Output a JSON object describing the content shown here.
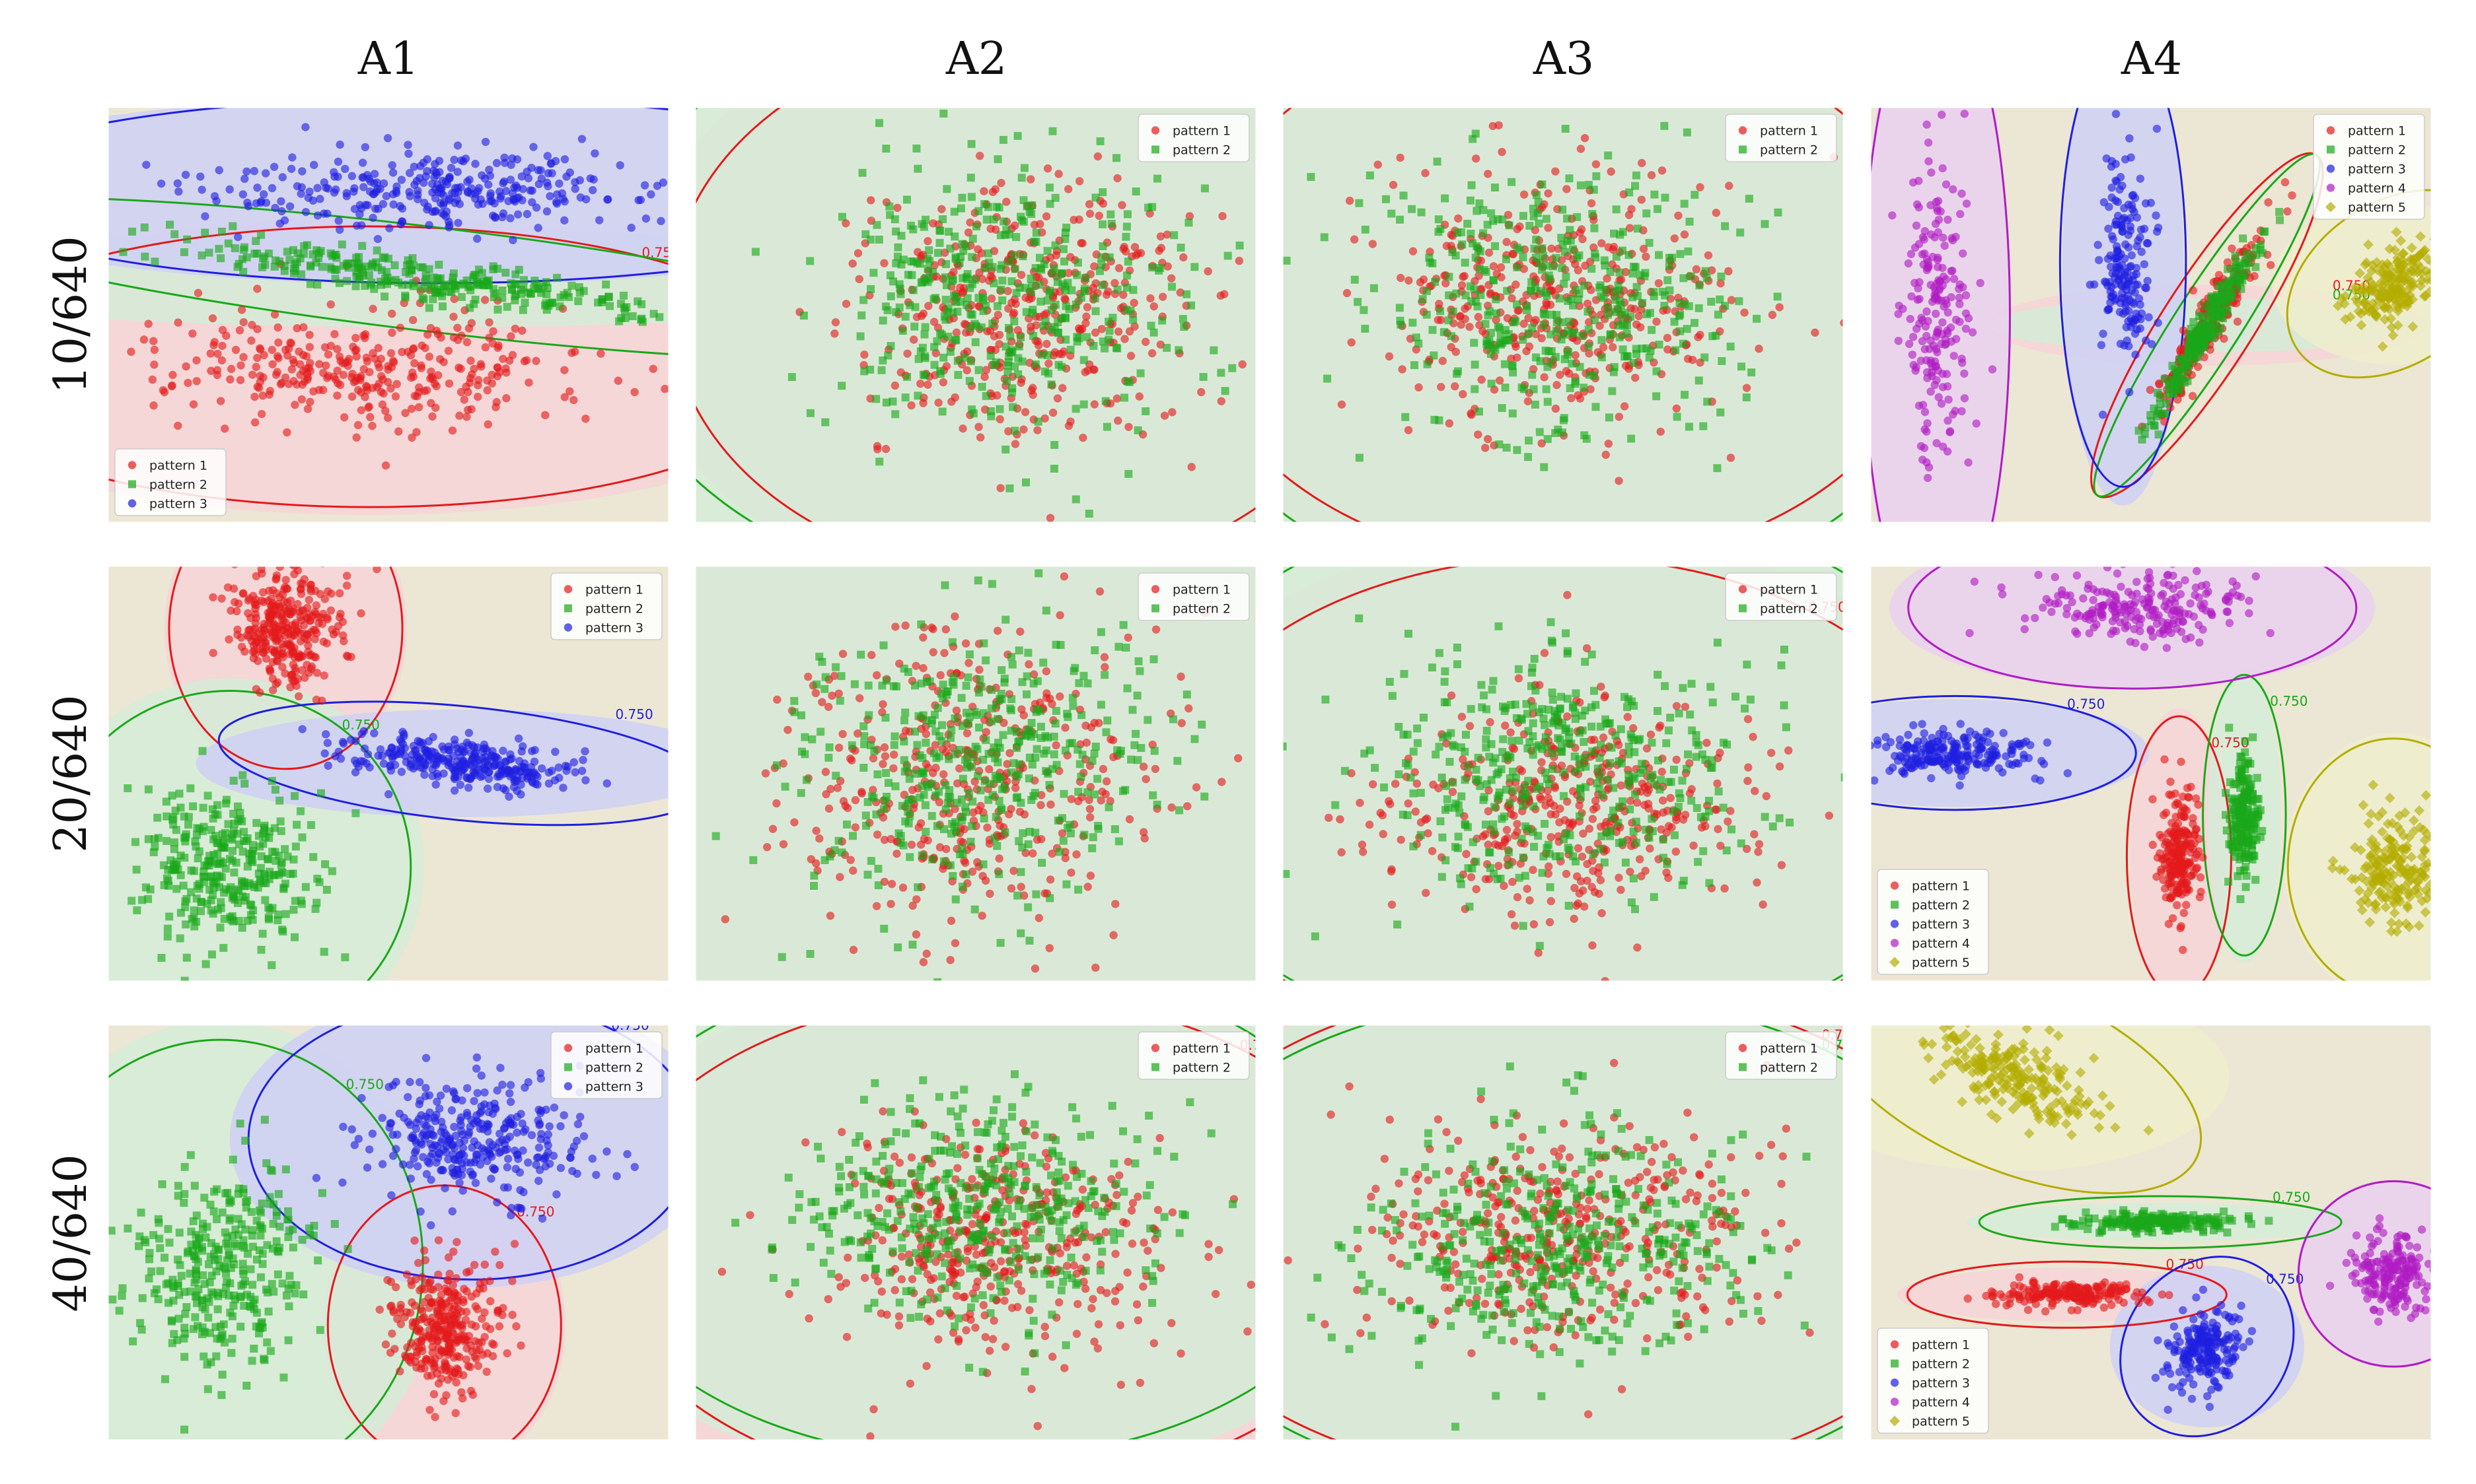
{
  "figure": {
    "column_titles": [
      "A1",
      "A2",
      "A3",
      "A4"
    ],
    "row_titles": [
      "10/640",
      "20/640",
      "40/640"
    ]
  },
  "colors": {
    "pattern 1": "#e41a1c",
    "pattern 2": "#1aa81a",
    "pattern 3": "#1f1fe0",
    "pattern 4": "#b01cc4",
    "pattern 5": "#b3ad00"
  },
  "chart_data": [
    {
      "type": "scatter",
      "panel": "A1 10/640",
      "series": [
        {
          "name": "pattern 1",
          "marker": "circle",
          "n": 340,
          "center": [
            -0.2,
            -0.5
          ],
          "spread": [
            2.0,
            0.55
          ]
        },
        {
          "name": "pattern 2",
          "marker": "square",
          "n": 300,
          "center": [
            0.4,
            0.35
          ],
          "spread": [
            2.4,
            0.18
          ],
          "tilt": -0.12
        },
        {
          "name": "pattern 3",
          "marker": "circle",
          "n": 320,
          "center": [
            0.5,
            1.2
          ],
          "spread": [
            2.2,
            0.35
          ]
        }
      ],
      "contour_level": "0.750",
      "legend_loc": "lower-left"
    },
    {
      "type": "scatter",
      "panel": "A2 10/640",
      "series": [
        {
          "name": "pattern 1",
          "marker": "circle",
          "n": 420,
          "center": [
            0.5,
            0.1
          ],
          "spread": [
            1.6,
            1.1
          ]
        },
        {
          "name": "pattern 2",
          "marker": "square",
          "n": 420,
          "center": [
            0.3,
            0.2
          ],
          "spread": [
            1.8,
            1.2
          ]
        }
      ],
      "contour_level": "0.750",
      "legend_loc": "upper-right"
    },
    {
      "type": "scatter",
      "panel": "A3 10/640",
      "series": [
        {
          "name": "pattern 1",
          "marker": "circle",
          "n": 420,
          "center": [
            0.0,
            0.2
          ],
          "spread": [
            1.7,
            1.1
          ]
        },
        {
          "name": "pattern 2",
          "marker": "square",
          "n": 420,
          "center": [
            0.0,
            0.1
          ],
          "spread": [
            1.8,
            1.2
          ]
        }
      ],
      "contour_level": "0.750",
      "legend_loc": "upper-right"
    },
    {
      "type": "scatter",
      "panel": "A4 10/640",
      "series": [
        {
          "name": "pattern 1",
          "marker": "circle",
          "n": 240,
          "center": [
            0.6,
            -0.1
          ],
          "spread": [
            0.9,
            0.15
          ],
          "tilt": 1.0
        },
        {
          "name": "pattern 2",
          "marker": "square",
          "n": 240,
          "center": [
            0.6,
            -0.1
          ],
          "spread": [
            0.9,
            0.1
          ],
          "tilt": 1.0
        },
        {
          "name": "pattern 3",
          "marker": "circle",
          "n": 180,
          "center": [
            -0.3,
            0.5
          ],
          "spread": [
            0.25,
            0.9
          ]
        },
        {
          "name": "pattern 4",
          "marker": "circle",
          "n": 200,
          "center": [
            -2.3,
            0.0
          ],
          "spread": [
            0.3,
            1.3
          ]
        },
        {
          "name": "pattern 5",
          "marker": "diamond",
          "n": 200,
          "center": [
            2.6,
            0.3
          ],
          "spread": [
            0.5,
            0.3
          ],
          "tilt": 0.6
        }
      ],
      "contour_level": "0.750",
      "legend_loc": "upper-right"
    },
    {
      "type": "scatter",
      "panel": "A1 20/640",
      "series": [
        {
          "name": "pattern 1",
          "marker": "circle",
          "n": 320,
          "center": [
            -1.1,
            1.4
          ],
          "spread": [
            0.5,
            0.55
          ]
        },
        {
          "name": "pattern 2",
          "marker": "square",
          "n": 320,
          "center": [
            -1.7,
            -0.9
          ],
          "spread": [
            0.8,
            0.7
          ]
        },
        {
          "name": "pattern 3",
          "marker": "circle",
          "n": 300,
          "center": [
            0.8,
            0.1
          ],
          "spread": [
            1.1,
            0.2
          ],
          "tilt": -0.1
        }
      ],
      "contour_level": "0.750",
      "legend_loc": "upper-right"
    },
    {
      "type": "scatter",
      "panel": "A2 20/640",
      "series": [
        {
          "name": "pattern 1",
          "marker": "circle",
          "n": 420,
          "center": [
            0.0,
            0.0
          ],
          "spread": [
            1.8,
            1.3
          ]
        },
        {
          "name": "pattern 2",
          "marker": "square",
          "n": 420,
          "center": [
            0.0,
            0.1
          ],
          "spread": [
            1.8,
            1.3
          ]
        }
      ],
      "contour_level": "0.750",
      "legend_loc": "upper-right"
    },
    {
      "type": "scatter",
      "panel": "A3 20/640",
      "series": [
        {
          "name": "pattern 1",
          "marker": "circle",
          "n": 420,
          "center": [
            0.0,
            -0.3
          ],
          "spread": [
            1.8,
            1.0
          ]
        },
        {
          "name": "pattern 2",
          "marker": "square",
          "n": 420,
          "center": [
            0.0,
            0.0
          ],
          "spread": [
            1.9,
            1.1
          ]
        }
      ],
      "contour_level": "0.750",
      "legend_loc": "upper-right"
    },
    {
      "type": "scatter",
      "panel": "A4 20/640",
      "series": [
        {
          "name": "pattern 1",
          "marker": "circle",
          "n": 220,
          "center": [
            0.3,
            -0.8
          ],
          "spread": [
            0.2,
            0.55
          ]
        },
        {
          "name": "pattern 2",
          "marker": "square",
          "n": 200,
          "center": [
            1.0,
            -0.4
          ],
          "spread": [
            0.15,
            0.55
          ]
        },
        {
          "name": "pattern 3",
          "marker": "circle",
          "n": 220,
          "center": [
            -2.1,
            0.2
          ],
          "spread": [
            0.8,
            0.2
          ]
        },
        {
          "name": "pattern 4",
          "marker": "circle",
          "n": 220,
          "center": [
            -0.2,
            1.6
          ],
          "spread": [
            1.0,
            0.3
          ]
        },
        {
          "name": "pattern 5",
          "marker": "diamond",
          "n": 200,
          "center": [
            2.6,
            -0.9
          ],
          "spread": [
            0.45,
            0.5
          ]
        }
      ],
      "contour_level": "0.750",
      "legend_loc": "lower-left"
    },
    {
      "type": "scatter",
      "panel": "A1 40/640",
      "series": [
        {
          "name": "pattern 1",
          "marker": "circle",
          "n": 320,
          "center": [
            0.6,
            -0.9
          ],
          "spread": [
            0.5,
            0.55
          ]
        },
        {
          "name": "pattern 2",
          "marker": "square",
          "n": 320,
          "center": [
            -1.8,
            -0.3
          ],
          "spread": [
            0.9,
            0.9
          ]
        },
        {
          "name": "pattern 3",
          "marker": "circle",
          "n": 320,
          "center": [
            0.9,
            0.9
          ],
          "spread": [
            1.0,
            0.55
          ]
        }
      ],
      "contour_level": "0.750",
      "legend_loc": "upper-right"
    },
    {
      "type": "scatter",
      "panel": "A2 40/640",
      "series": [
        {
          "name": "pattern 1",
          "marker": "circle",
          "n": 420,
          "center": [
            0.2,
            -0.1
          ],
          "spread": [
            1.8,
            1.0
          ]
        },
        {
          "name": "pattern 2",
          "marker": "square",
          "n": 420,
          "center": [
            0.0,
            0.2
          ],
          "spread": [
            1.8,
            1.0
          ]
        }
      ],
      "contour_level": "0.750",
      "legend_loc": "upper-right"
    },
    {
      "type": "scatter",
      "panel": "A3 40/640",
      "series": [
        {
          "name": "pattern 1",
          "marker": "circle",
          "n": 420,
          "center": [
            0.0,
            0.0
          ],
          "spread": [
            1.9,
            1.0
          ]
        },
        {
          "name": "pattern 2",
          "marker": "square",
          "n": 420,
          "center": [
            0.0,
            -0.1
          ],
          "spread": [
            1.9,
            1.0
          ]
        }
      ],
      "contour_level": "0.750",
      "legend_loc": "upper-right"
    },
    {
      "type": "scatter",
      "panel": "A4 40/640",
      "series": [
        {
          "name": "pattern 1",
          "marker": "circle",
          "n": 200,
          "center": [
            -0.9,
            -0.6
          ],
          "spread": [
            0.7,
            0.1
          ]
        },
        {
          "name": "pattern 2",
          "marker": "square",
          "n": 200,
          "center": [
            0.1,
            0.1
          ],
          "spread": [
            0.8,
            0.07
          ]
        },
        {
          "name": "pattern 3",
          "marker": "circle",
          "n": 200,
          "center": [
            0.6,
            -1.1
          ],
          "spread": [
            0.4,
            0.3
          ],
          "tilt": 0.9
        },
        {
          "name": "pattern 4",
          "marker": "circle",
          "n": 200,
          "center": [
            2.6,
            -0.4
          ],
          "spread": [
            0.4,
            0.35
          ]
        },
        {
          "name": "pattern 5",
          "marker": "diamond",
          "n": 220,
          "center": [
            -1.5,
            1.5
          ],
          "spread": [
            0.9,
            0.35
          ],
          "tilt": -0.4
        }
      ],
      "contour_level": "0.750",
      "legend_loc": "lower-left"
    }
  ]
}
